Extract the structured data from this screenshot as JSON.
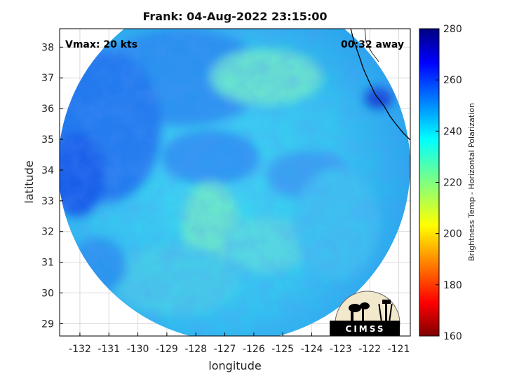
{
  "title": "Frank: 04-Aug-2022 23:15:00",
  "annotations": {
    "vmax": "Vmax: 20 kts",
    "away": "00:32 away"
  },
  "axes": {
    "xlabel": "longitude",
    "ylabel": "latitude",
    "xlim": [
      -132.7,
      -120.6
    ],
    "ylim": [
      28.6,
      38.6
    ],
    "xticks": [
      "-132",
      "-131",
      "-130",
      "-129",
      "-128",
      "-127",
      "-126",
      "-125",
      "-124",
      "-123",
      "-122",
      "-121"
    ],
    "yticks": [
      "38",
      "37",
      "36",
      "35",
      "34",
      "33",
      "32",
      "31",
      "30",
      "29"
    ]
  },
  "colorbar": {
    "label": "Brightness Temp - Horizontal Polarization",
    "ticks": [
      "280",
      "260",
      "240",
      "220",
      "200",
      "180",
      "160"
    ],
    "range": [
      160,
      280
    ],
    "colormap": "jet"
  },
  "swath": {
    "center_lon": -126.6,
    "center_lat": 33.55,
    "dominant_value_range": [
      235,
      255
    ]
  },
  "logo": {
    "text": "CIMSS"
  },
  "colors": {
    "grid": "#d9d9d9",
    "frame": "#000000",
    "coast": "#000000"
  }
}
